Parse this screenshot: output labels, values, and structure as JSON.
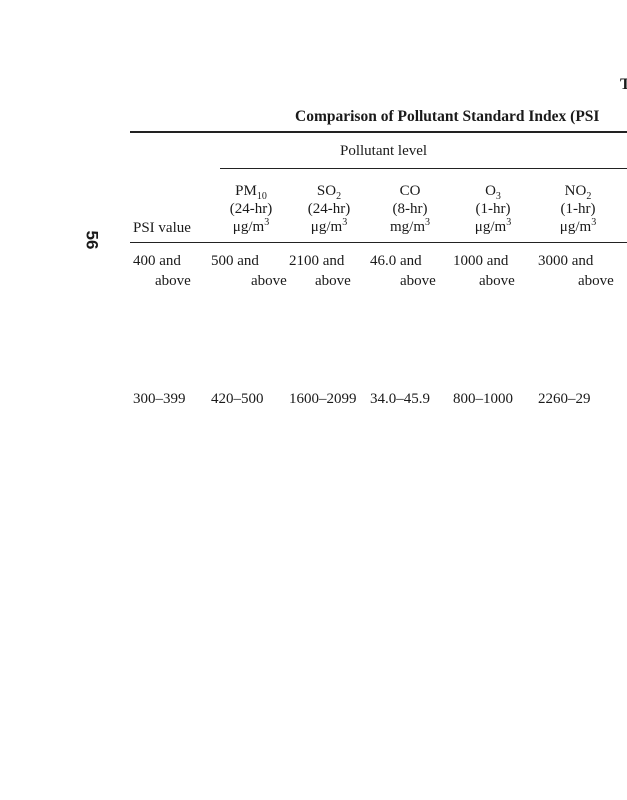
{
  "page_number": "56",
  "running_head": "T",
  "table_title": "Comparison of Pollutant Standard Index (PSI",
  "spanner": "Pollutant level",
  "columns": [
    {
      "label": "PSI value"
    },
    {
      "name": "PM",
      "sub": "10",
      "period": "(24-hr)",
      "unit": "μg/m",
      "unit_sup": "3"
    },
    {
      "name": "SO",
      "sub": "2",
      "period": "(24-hr)",
      "unit": "μg/m",
      "unit_sup": "3"
    },
    {
      "name": "CO",
      "sub": "",
      "period": "(8-hr)",
      "unit": "mg/m",
      "unit_sup": "3"
    },
    {
      "name": "O",
      "sub": "3",
      "period": "(1-hr)",
      "unit": "μg/m",
      "unit_sup": "3"
    },
    {
      "name": "NO",
      "sub": "2",
      "period": "(1-hr)",
      "unit": "μg/m",
      "unit_sup": "3"
    }
  ],
  "rows": [
    {
      "cells": [
        [
          "400 and",
          "above"
        ],
        [
          "500 and",
          "above"
        ],
        [
          "2100 and",
          "above"
        ],
        [
          "46.0 and",
          "above"
        ],
        [
          "1000 and",
          "above"
        ],
        [
          "3000 and",
          "above"
        ]
      ]
    },
    {
      "cells": [
        [
          "300–399"
        ],
        [
          "420–500"
        ],
        [
          "1600–2099"
        ],
        [
          "34.0–45.9"
        ],
        [
          "800–1000"
        ],
        [
          "2260–29"
        ]
      ]
    }
  ]
}
